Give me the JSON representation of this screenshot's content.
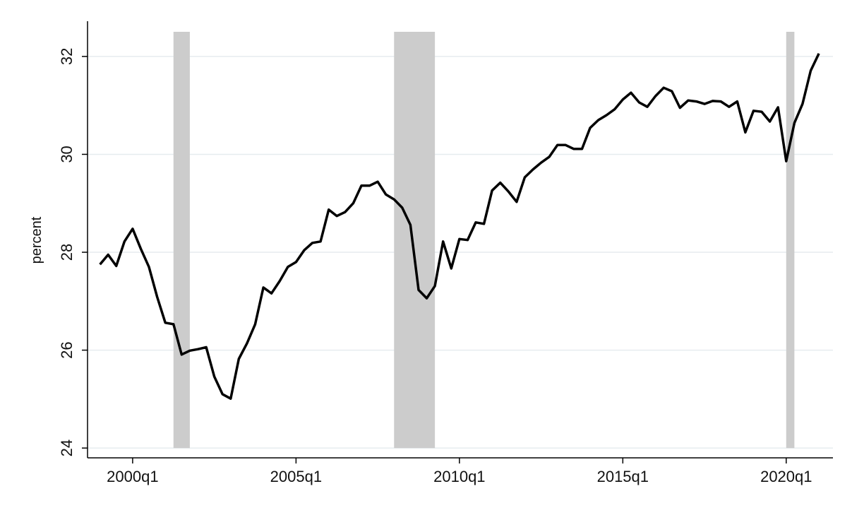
{
  "chart_data": {
    "type": "line",
    "y_label": "percent",
    "x": [
      1999,
      1999.25,
      1999.5,
      1999.75,
      2000,
      2000.25,
      2000.5,
      2000.75,
      2001,
      2001.25,
      2001.5,
      2001.75,
      2002,
      2002.25,
      2002.5,
      2002.75,
      2003,
      2003.25,
      2003.5,
      2003.75,
      2004,
      2004.25,
      2004.5,
      2004.75,
      2005,
      2005.25,
      2005.5,
      2005.75,
      2006,
      2006.25,
      2006.5,
      2006.75,
      2007,
      2007.25,
      2007.5,
      2007.75,
      2008,
      2008.25,
      2008.5,
      2008.75,
      2009,
      2009.25,
      2009.5,
      2009.75,
      2010,
      2010.25,
      2010.5,
      2010.75,
      2011,
      2011.25,
      2011.5,
      2011.75,
      2012,
      2012.25,
      2012.5,
      2012.75,
      2013,
      2013.25,
      2013.5,
      2013.75,
      2014,
      2014.25,
      2014.5,
      2014.75,
      2015,
      2015.25,
      2015.5,
      2015.75,
      2016,
      2016.25,
      2016.5,
      2016.75,
      2017,
      2017.25,
      2017.5,
      2017.75,
      2018,
      2018.25,
      2018.5,
      2018.75,
      2019,
      2019.25,
      2019.5,
      2019.75,
      2020,
      2020.25,
      2020.5,
      2020.75,
      2021
    ],
    "values": [
      27.75,
      27.95,
      27.72,
      28.22,
      28.48,
      28.07,
      27.7,
      27.09,
      26.56,
      26.53,
      25.91,
      25.99,
      26.02,
      26.06,
      25.46,
      25.1,
      25.01,
      25.82,
      26.14,
      26.53,
      27.28,
      27.16,
      27.41,
      27.7,
      27.8,
      28.04,
      28.19,
      28.22,
      28.87,
      28.74,
      28.82,
      29.0,
      29.36,
      29.36,
      29.44,
      29.18,
      29.08,
      28.91,
      28.56,
      27.23,
      27.06,
      27.31,
      28.22,
      27.67,
      28.27,
      28.25,
      28.61,
      28.58,
      29.26,
      29.42,
      29.24,
      29.03,
      29.53,
      29.69,
      29.83,
      29.95,
      30.19,
      30.19,
      30.11,
      30.11,
      30.54,
      30.7,
      30.8,
      30.92,
      31.12,
      31.26,
      31.06,
      30.97,
      31.19,
      31.36,
      31.29,
      30.95,
      31.1,
      31.08,
      31.03,
      31.09,
      31.08,
      30.97,
      31.08,
      30.45,
      30.89,
      30.87,
      30.67,
      30.96,
      29.86,
      30.64,
      31.03,
      31.71,
      32.06
    ],
    "color": "#000000",
    "shaded_periods": [
      [
        2001.25,
        2001.75
      ],
      [
        2008,
        2009.25
      ],
      [
        2020,
        2020.25
      ]
    ],
    "shade_color": "#cccccc",
    "xlim": [
      1998.62,
      2021.43
    ],
    "xticks": [
      {
        "value": 2000,
        "label": "2000q1"
      },
      {
        "value": 2005,
        "label": "2005q1"
      },
      {
        "value": 2010,
        "label": "2010q1"
      },
      {
        "value": 2015,
        "label": "2015q1"
      },
      {
        "value": 2020,
        "label": "2020q1"
      }
    ],
    "ylim": [
      23.8,
      32.72
    ],
    "yticks": [
      24,
      26,
      28,
      30,
      32
    ],
    "grid": true
  }
}
